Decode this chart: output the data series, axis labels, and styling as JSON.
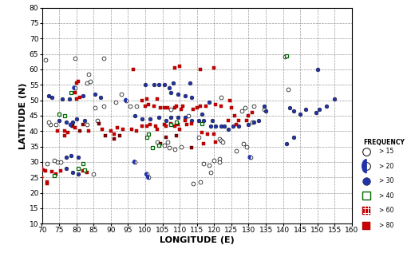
{
  "xlim": [
    70,
    160
  ],
  "ylim": [
    10,
    80
  ],
  "xticks": [
    70,
    75,
    80,
    85,
    90,
    95,
    100,
    105,
    110,
    115,
    120,
    125,
    130,
    135,
    140,
    145,
    150,
    155,
    160
  ],
  "yticks": [
    10,
    15,
    20,
    25,
    30,
    35,
    40,
    45,
    50,
    55,
    60,
    65,
    70,
    75,
    80
  ],
  "xlabel": "LONGITUDE (E)",
  "ylabel": "LATITUDE (N)",
  "legend_title": "FREQUENCY",
  "legend_labels": [
    "> 15",
    "> 20",
    "> 30",
    "> 40",
    "> 60",
    "> 80"
  ],
  "red_sq": [
    [
      71.4,
      23.1
    ],
    [
      71.0,
      27.0
    ],
    [
      72.8,
      26.9
    ],
    [
      70.3,
      27.5
    ],
    [
      70.0,
      28.0
    ],
    [
      74.0,
      26.0
    ],
    [
      75.5,
      27.0
    ],
    [
      70.0,
      25.0
    ],
    [
      71.5,
      23.5
    ],
    [
      74.5,
      40.0
    ],
    [
      76.5,
      40.0
    ],
    [
      76.5,
      38.5
    ],
    [
      77.5,
      39.5
    ],
    [
      79.5,
      41.0
    ],
    [
      80.0,
      50.5
    ],
    [
      81.0,
      51.0
    ],
    [
      79.5,
      52.5
    ],
    [
      80.0,
      55.5
    ],
    [
      80.5,
      56.0
    ],
    [
      82.0,
      27.0
    ],
    [
      83.0,
      26.5
    ],
    [
      83.5,
      40.0
    ],
    [
      87.5,
      40.5
    ],
    [
      90.0,
      40.0
    ],
    [
      91.0,
      39.0
    ],
    [
      92.0,
      41.0
    ],
    [
      93.5,
      40.5
    ],
    [
      96.0,
      40.5
    ],
    [
      97.5,
      40.0
    ],
    [
      99.0,
      41.5
    ],
    [
      100.5,
      41.5
    ],
    [
      101.5,
      42.0
    ],
    [
      103.0,
      41.5
    ],
    [
      103.5,
      40.5
    ],
    [
      105.5,
      42.0
    ],
    [
      106.0,
      41.5
    ],
    [
      107.5,
      42.5
    ],
    [
      108.5,
      41.5
    ],
    [
      109.5,
      42.0
    ],
    [
      110.0,
      40.5
    ],
    [
      111.5,
      43.5
    ],
    [
      112.0,
      42.0
    ],
    [
      113.5,
      42.5
    ],
    [
      99.0,
      50.0
    ],
    [
      100.5,
      50.5
    ],
    [
      103.5,
      50.5
    ],
    [
      100.0,
      48.0
    ],
    [
      101.0,
      48.5
    ],
    [
      102.5,
      48.0
    ],
    [
      104.5,
      47.5
    ],
    [
      105.5,
      47.5
    ],
    [
      106.5,
      47.5
    ],
    [
      108.5,
      47.5
    ],
    [
      109.0,
      48.0
    ],
    [
      110.5,
      47.0
    ],
    [
      111.0,
      48.0
    ],
    [
      114.0,
      47.0
    ],
    [
      115.0,
      47.5
    ],
    [
      116.0,
      48.0
    ],
    [
      117.5,
      48.0
    ],
    [
      120.5,
      48.5
    ],
    [
      96.5,
      60.0
    ],
    [
      108.5,
      60.5
    ],
    [
      110.0,
      61.0
    ],
    [
      116.0,
      60.0
    ],
    [
      120.0,
      60.5
    ],
    [
      125.0,
      47.5
    ],
    [
      126.0,
      45.0
    ],
    [
      124.0,
      43.5
    ],
    [
      127.0,
      43.5
    ],
    [
      126.5,
      42.0
    ],
    [
      122.0,
      48.0
    ],
    [
      124.5,
      50.0
    ],
    [
      129.5,
      43.5
    ],
    [
      130.0,
      45.0
    ],
    [
      131.0,
      46.0
    ],
    [
      116.5,
      39.5
    ],
    [
      118.0,
      39.0
    ],
    [
      120.0,
      39.0
    ],
    [
      117.0,
      36.0
    ],
    [
      120.5,
      36.5
    ]
  ],
  "dark_red_sq": [
    [
      113.5,
      34.5
    ],
    [
      106.0,
      38.0
    ],
    [
      104.5,
      36.0
    ],
    [
      92.5,
      38.5
    ],
    [
      88.5,
      38.5
    ],
    [
      91.0,
      37.5
    ],
    [
      86.5,
      42.5
    ],
    [
      82.0,
      42.0
    ],
    [
      81.0,
      40.0
    ],
    [
      79.0,
      41.5
    ],
    [
      109.0,
      38.5
    ]
  ],
  "blue_circle": [
    [
      77.0,
      31.5
    ],
    [
      78.5,
      32.0
    ],
    [
      80.5,
      31.5
    ],
    [
      77.0,
      28.0
    ],
    [
      79.0,
      26.5
    ],
    [
      80.5,
      26.0
    ],
    [
      82.0,
      51.5
    ],
    [
      85.5,
      52.0
    ],
    [
      87.0,
      51.0
    ],
    [
      76.0,
      50.5
    ],
    [
      78.0,
      50.5
    ],
    [
      73.0,
      51.0
    ],
    [
      72.0,
      51.5
    ],
    [
      82.5,
      43.5
    ],
    [
      80.0,
      44.0
    ],
    [
      79.0,
      43.0
    ],
    [
      77.0,
      43.0
    ],
    [
      75.0,
      43.5
    ],
    [
      97.0,
      45.0
    ],
    [
      99.0,
      44.0
    ],
    [
      101.5,
      44.0
    ],
    [
      104.0,
      44.5
    ],
    [
      106.0,
      43.5
    ],
    [
      107.5,
      44.5
    ],
    [
      109.5,
      44.5
    ],
    [
      111.5,
      44.5
    ],
    [
      113.5,
      43.5
    ],
    [
      115.5,
      43.5
    ],
    [
      116.5,
      45.5
    ],
    [
      117.0,
      43.5
    ],
    [
      119.5,
      43.5
    ],
    [
      119.0,
      41.5
    ],
    [
      120.5,
      41.5
    ],
    [
      122.0,
      41.5
    ],
    [
      123.0,
      41.5
    ],
    [
      124.0,
      40.5
    ],
    [
      125.5,
      41.5
    ],
    [
      127.0,
      41.5
    ],
    [
      130.0,
      42.0
    ],
    [
      131.5,
      43.0
    ],
    [
      133.0,
      43.5
    ],
    [
      134.5,
      48.0
    ],
    [
      135.0,
      46.5
    ],
    [
      100.0,
      55.0
    ],
    [
      102.5,
      55.0
    ],
    [
      104.0,
      55.0
    ],
    [
      105.5,
      55.0
    ],
    [
      107.0,
      54.0
    ],
    [
      108.0,
      55.5
    ],
    [
      113.0,
      55.5
    ],
    [
      107.5,
      52.5
    ],
    [
      109.5,
      52.0
    ],
    [
      111.5,
      51.5
    ],
    [
      113.5,
      51.0
    ],
    [
      118.5,
      49.5
    ],
    [
      142.0,
      47.5
    ],
    [
      143.0,
      46.5
    ],
    [
      145.0,
      45.5
    ],
    [
      146.5,
      47.0
    ],
    [
      149.5,
      46.0
    ],
    [
      150.5,
      47.0
    ],
    [
      152.5,
      48.0
    ],
    [
      155.0,
      50.5
    ],
    [
      150.0,
      60.0
    ],
    [
      143.0,
      38.0
    ],
    [
      141.0,
      36.0
    ]
  ],
  "half_blue": [
    [
      130.5,
      31.5
    ],
    [
      78.5,
      42.0
    ],
    [
      97.0,
      30.0
    ],
    [
      100.5,
      26.0
    ],
    [
      101.0,
      25.0
    ],
    [
      94.5,
      50.0
    ],
    [
      79.5,
      54.0
    ]
  ],
  "open_circle": [
    [
      71.0,
      63.0
    ],
    [
      79.5,
      63.5
    ],
    [
      88.0,
      63.5
    ],
    [
      83.5,
      58.5
    ],
    [
      83.0,
      55.5
    ],
    [
      84.0,
      56.0
    ],
    [
      85.5,
      47.5
    ],
    [
      86.0,
      43.5
    ],
    [
      83.0,
      42.0
    ],
    [
      74.0,
      42.0
    ],
    [
      72.5,
      42.0
    ],
    [
      72.0,
      43.0
    ],
    [
      74.5,
      30.0
    ],
    [
      75.5,
      30.0
    ],
    [
      73.5,
      30.5
    ],
    [
      71.5,
      29.5
    ],
    [
      85.0,
      26.0
    ],
    [
      88.0,
      48.0
    ],
    [
      91.5,
      49.5
    ],
    [
      93.0,
      52.0
    ],
    [
      95.5,
      48.0
    ],
    [
      97.5,
      48.0
    ],
    [
      107.5,
      47.0
    ],
    [
      112.5,
      45.0
    ],
    [
      115.5,
      38.0
    ],
    [
      110.5,
      35.0
    ],
    [
      108.5,
      34.0
    ],
    [
      107.0,
      34.5
    ],
    [
      106.5,
      36.5
    ],
    [
      105.5,
      35.5
    ],
    [
      103.5,
      36.5
    ],
    [
      121.5,
      31.0
    ],
    [
      121.5,
      30.0
    ],
    [
      120.0,
      30.5
    ],
    [
      119.0,
      26.5
    ],
    [
      118.5,
      29.0
    ],
    [
      117.0,
      29.5
    ],
    [
      114.0,
      23.0
    ],
    [
      116.0,
      23.5
    ],
    [
      121.5,
      37.5
    ],
    [
      122.0,
      37.0
    ],
    [
      122.5,
      36.5
    ],
    [
      122.0,
      51.0
    ],
    [
      128.0,
      46.5
    ],
    [
      129.0,
      47.5
    ],
    [
      131.5,
      48.0
    ],
    [
      134.5,
      47.0
    ],
    [
      131.0,
      43.0
    ],
    [
      129.5,
      35.0
    ],
    [
      128.5,
      36.0
    ],
    [
      126.5,
      33.5
    ],
    [
      140.5,
      64.0
    ],
    [
      141.5,
      53.5
    ]
  ],
  "green_sq": [
    [
      102.0,
      34.5
    ],
    [
      104.0,
      35.5
    ],
    [
      100.5,
      38.0
    ],
    [
      101.0,
      39.0
    ],
    [
      82.0,
      29.5
    ],
    [
      80.5,
      28.0
    ],
    [
      73.5,
      25.5
    ],
    [
      82.5,
      27.5
    ],
    [
      78.5,
      52.5
    ],
    [
      75.0,
      45.5
    ],
    [
      76.5,
      45.0
    ],
    [
      116.5,
      42.5
    ],
    [
      107.5,
      42.0
    ],
    [
      109.0,
      43.0
    ],
    [
      141.0,
      64.5
    ]
  ]
}
